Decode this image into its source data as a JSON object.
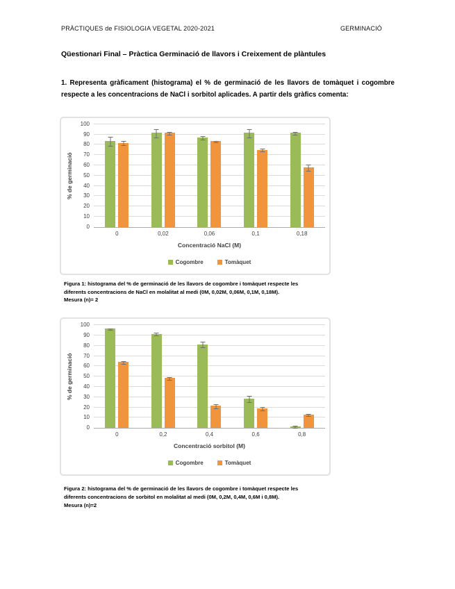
{
  "header": {
    "left": "PRÀCTIQUES de FISIOLOGIA VEGETAL 2020-2021",
    "right": "GERMINACIÓ"
  },
  "doc_title": "Qüestionari Final – Pràctica Germinació de llavors i Creixement de plàntules",
  "question": "1. Representa gràficament (histograma) el % de germinació de les llavors de tomàquet i cogombre respecte a les concentracions de NaCl i sorbitol aplicades. A partir dels gràfics comenta:",
  "colors": {
    "cogombre_green": "#9bbb59",
    "tomaquet_orange": "#f0943e",
    "error_bar": "#6f6f6f",
    "gridline": "#dcdcdc",
    "axis_text": "#3f3f3f",
    "chart_border": "#e2e2e2"
  },
  "chart_data": [
    {
      "type": "bar",
      "title": "",
      "xlabel": "Concentració NaCl (M)",
      "ylabel": "% de germinació",
      "ylim": [
        0,
        100
      ],
      "ytick_step": 10,
      "grid": true,
      "legend_position": "bottom",
      "categories": [
        "0",
        "0,02",
        "0,06",
        "0,1",
        "0,18"
      ],
      "series": [
        {
          "name": "Cogombre",
          "color": "#9bbb59",
          "values": [
            83.5,
            91.5,
            87,
            91.5,
            91.5
          ],
          "errors": [
            4,
            3.5,
            1.5,
            3.5,
            1
          ]
        },
        {
          "name": "Tomàquet",
          "color": "#f0943e",
          "values": [
            82,
            91.5,
            83.5,
            75,
            58
          ],
          "errors": [
            2,
            1,
            0.5,
            1,
            2.5
          ]
        }
      ]
    },
    {
      "type": "bar",
      "title": "",
      "xlabel": "Concentració sorbitol (M)",
      "ylabel": "% de germinació",
      "ylim": [
        0,
        100
      ],
      "ytick_step": 10,
      "grid": true,
      "legend_position": "bottom",
      "categories": [
        "0",
        "0,2",
        "0,4",
        "0,6",
        "0,8"
      ],
      "series": [
        {
          "name": "Cogombre",
          "color": "#9bbb59",
          "values": [
            96.5,
            91.5,
            81.5,
            28.5,
            1.5
          ],
          "errors": [
            0.5,
            1,
            2.5,
            2.5,
            0.5
          ]
        },
        {
          "name": "Tomàquet",
          "color": "#f0943e",
          "values": [
            64,
            48.5,
            21.5,
            19,
            13
          ],
          "errors": [
            1,
            1,
            1.5,
            1.5,
            0.5
          ]
        }
      ]
    }
  ],
  "captions": [
    "Figura 1: histograma del % de germinació de les llavors de cogombre i tomàquet respecte les\ndiferents concentracions de NaCl en molalitat al medi (0M, 0,02M, 0,06M, 0,1M, 0,18M).\nMesura (n)= 2",
    "Figura 2: histograma del % de germinació de les llavors de cogombre i tomàquet respecte les\ndiferents concentracions de sorbitol en molalitat al medi (0M, 0,2M, 0,4M, 0,6M i 0,8M).\nMesura (n)=2"
  ]
}
